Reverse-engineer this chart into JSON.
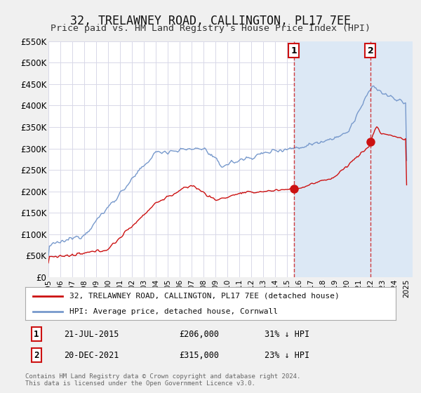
{
  "title": "32, TRELAWNEY ROAD, CALLINGTON, PL17 7EE",
  "subtitle": "Price paid vs. HM Land Registry's House Price Index (HPI)",
  "title_fontsize": 12,
  "subtitle_fontsize": 9.5,
  "ylim": [
    0,
    550000
  ],
  "xlim_start": 1995.0,
  "xlim_end": 2025.5,
  "yticks": [
    0,
    50000,
    100000,
    150000,
    200000,
    250000,
    300000,
    350000,
    400000,
    450000,
    500000,
    550000
  ],
  "ytick_labels": [
    "£0",
    "£50K",
    "£100K",
    "£150K",
    "£200K",
    "£250K",
    "£300K",
    "£350K",
    "£400K",
    "£450K",
    "£500K",
    "£550K"
  ],
  "xtick_labels": [
    "1995",
    "1996",
    "1997",
    "1998",
    "1999",
    "2000",
    "2001",
    "2002",
    "2003",
    "2004",
    "2005",
    "2006",
    "2007",
    "2008",
    "2009",
    "2010",
    "2011",
    "2012",
    "2013",
    "2014",
    "2015",
    "2016",
    "2017",
    "2018",
    "2019",
    "2020",
    "2021",
    "2022",
    "2023",
    "2024",
    "2025"
  ],
  "xticks": [
    1995,
    1996,
    1997,
    1998,
    1999,
    2000,
    2001,
    2002,
    2003,
    2004,
    2005,
    2006,
    2007,
    2008,
    2009,
    2010,
    2011,
    2012,
    2013,
    2014,
    2015,
    2016,
    2017,
    2018,
    2019,
    2020,
    2021,
    2022,
    2023,
    2024,
    2025
  ],
  "figure_bg": "#f0f0f0",
  "plot_bg": "#ffffff",
  "grid_color": "#d8d8e8",
  "hpi_color": "#7799cc",
  "hpi_fill": "#dce8f5",
  "price_color": "#cc1111",
  "marker_color": "#cc1111",
  "vline_color": "#cc1111",
  "event1_x": 2015.55,
  "event1_y": 206000,
  "event2_x": 2021.97,
  "event2_y": 315000,
  "legend_title1": "32, TRELAWNEY ROAD, CALLINGTON, PL17 7EE (detached house)",
  "legend_title2": "HPI: Average price, detached house, Cornwall",
  "annotation1_date": "21-JUL-2015",
  "annotation1_price": "£206,000",
  "annotation1_hpi": "31% ↓ HPI",
  "annotation2_date": "20-DEC-2021",
  "annotation2_price": "£315,000",
  "annotation2_hpi": "23% ↓ HPI",
  "footer1": "Contains HM Land Registry data © Crown copyright and database right 2024.",
  "footer2": "This data is licensed under the Open Government Licence v3.0."
}
